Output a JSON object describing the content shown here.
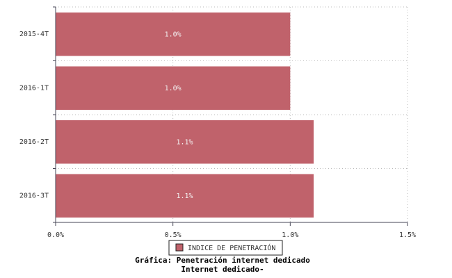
{
  "chart_data": {
    "type": "hbar",
    "title": "Gráfica: Penetración internet dedicado",
    "subtitle": "Internet dedicado-",
    "categories": [
      "2015-4T",
      "2016-1T",
      "2016-2T",
      "2016-3T"
    ],
    "series": [
      {
        "name": "INDICE DE PENETRACIÓN",
        "color": "#c0626b",
        "values": [
          1.0,
          1.0,
          1.1,
          1.1
        ],
        "value_labels": [
          "1.0%",
          "1.0%",
          "1.1%",
          "1.1%"
        ]
      }
    ],
    "xlim": [
      0,
      1.5
    ],
    "xticks": [
      {
        "value": 0,
        "label": "0.0%"
      },
      {
        "value": 0.5,
        "label": "0.5%"
      },
      {
        "value": 1.0,
        "label": "1.0%"
      },
      {
        "value": 1.5,
        "label": "1.5%"
      }
    ],
    "grid": true
  }
}
